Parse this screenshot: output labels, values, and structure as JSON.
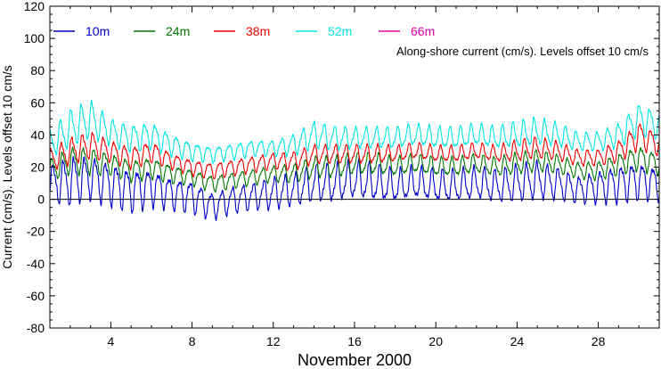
{
  "chart_data": {
    "type": "line",
    "title": "",
    "annotation": "Along-shore current (cm/s). Levels offset 10 cm/s",
    "xlabel": "November 2000",
    "ylabel": "Current (cm/s). Levels offset 10 cm/s",
    "xlim": [
      1,
      31
    ],
    "ylim": [
      -80,
      120
    ],
    "x_ticks": [
      4,
      8,
      12,
      16,
      20,
      24,
      28
    ],
    "y_ticks": [
      -80,
      -60,
      -40,
      -20,
      0,
      20,
      40,
      60,
      80,
      100,
      120
    ],
    "x_tick_labels": [
      "4",
      "8",
      "12",
      "16",
      "20",
      "24",
      "28"
    ],
    "y_tick_labels": [
      "-80",
      "-60",
      "-40",
      "-20",
      "0",
      "20",
      "40",
      "60",
      "80",
      "100",
      "120"
    ],
    "reference_line_y": 0,
    "grid": false,
    "legend_position": "top-left",
    "series": [
      {
        "name": "10m",
        "color": "#0000cc",
        "x": [
          1,
          2,
          3,
          4,
          5,
          6,
          7,
          8,
          9,
          10,
          11,
          12,
          13,
          14,
          15,
          16,
          17,
          18,
          19,
          20,
          21,
          22,
          23,
          24,
          25,
          26,
          27,
          28,
          29,
          30,
          31
        ],
        "y": [
          10,
          12,
          14,
          10,
          6,
          8,
          4,
          2,
          -4,
          0,
          2,
          4,
          6,
          10,
          10,
          12,
          10,
          8,
          10,
          8,
          8,
          10,
          8,
          10,
          12,
          10,
          6,
          8,
          10,
          12,
          10
        ],
        "amplitude": [
          14,
          18,
          16,
          16,
          16,
          14,
          12,
          12,
          10,
          10,
          10,
          12,
          12,
          14,
          14,
          14,
          14,
          12,
          12,
          12,
          12,
          12,
          12,
          14,
          14,
          12,
          10,
          12,
          14,
          14,
          12
        ]
      },
      {
        "name": "24m",
        "color": "#007700",
        "x": [
          1,
          2,
          3,
          4,
          5,
          6,
          7,
          8,
          9,
          10,
          11,
          12,
          13,
          14,
          15,
          16,
          17,
          18,
          19,
          20,
          21,
          22,
          23,
          24,
          25,
          26,
          27,
          28,
          29,
          30,
          31
        ],
        "y": [
          18,
          24,
          24,
          22,
          18,
          20,
          16,
          14,
          10,
          12,
          14,
          16,
          16,
          20,
          20,
          22,
          22,
          20,
          22,
          20,
          20,
          22,
          20,
          22,
          24,
          22,
          18,
          18,
          22,
          26,
          22
        ],
        "amplitude": [
          8,
          10,
          10,
          8,
          8,
          8,
          7,
          6,
          6,
          6,
          6,
          6,
          7,
          8,
          8,
          8,
          8,
          7,
          7,
          7,
          7,
          7,
          7,
          8,
          8,
          7,
          6,
          7,
          8,
          9,
          8
        ]
      },
      {
        "name": "38m",
        "color": "#ee0000",
        "x": [
          1,
          2,
          3,
          4,
          5,
          6,
          7,
          8,
          9,
          10,
          11,
          12,
          13,
          14,
          15,
          16,
          17,
          18,
          19,
          20,
          21,
          22,
          23,
          24,
          25,
          26,
          27,
          28,
          29,
          30,
          31
        ],
        "y": [
          24,
          30,
          34,
          30,
          26,
          30,
          24,
          20,
          18,
          20,
          22,
          24,
          24,
          28,
          28,
          28,
          28,
          28,
          30,
          28,
          28,
          30,
          28,
          30,
          32,
          30,
          26,
          26,
          30,
          40,
          34
        ],
        "amplitude": [
          8,
          10,
          10,
          8,
          8,
          8,
          6,
          6,
          6,
          6,
          6,
          6,
          7,
          7,
          7,
          7,
          7,
          6,
          6,
          6,
          6,
          6,
          6,
          8,
          8,
          7,
          6,
          6,
          8,
          10,
          8
        ]
      },
      {
        "name": "52m",
        "color": "#00e5e5",
        "x": [
          1,
          2,
          3,
          4,
          5,
          6,
          7,
          8,
          9,
          10,
          11,
          12,
          13,
          14,
          15,
          16,
          17,
          18,
          19,
          20,
          21,
          22,
          23,
          24,
          25,
          26,
          27,
          28,
          29,
          30,
          31
        ],
        "y": [
          34,
          44,
          50,
          42,
          38,
          40,
          34,
          30,
          28,
          30,
          32,
          32,
          34,
          40,
          38,
          38,
          38,
          38,
          40,
          38,
          38,
          40,
          38,
          40,
          42,
          40,
          36,
          36,
          40,
          50,
          46
        ],
        "amplitude": [
          10,
          14,
          14,
          10,
          10,
          10,
          8,
          7,
          6,
          6,
          6,
          6,
          8,
          10,
          9,
          8,
          8,
          8,
          8,
          8,
          8,
          8,
          8,
          10,
          10,
          9,
          7,
          7,
          9,
          12,
          10
        ]
      },
      {
        "name": "66m",
        "color": "#dd00aa",
        "x": [],
        "y": [],
        "amplitude": []
      }
    ]
  }
}
